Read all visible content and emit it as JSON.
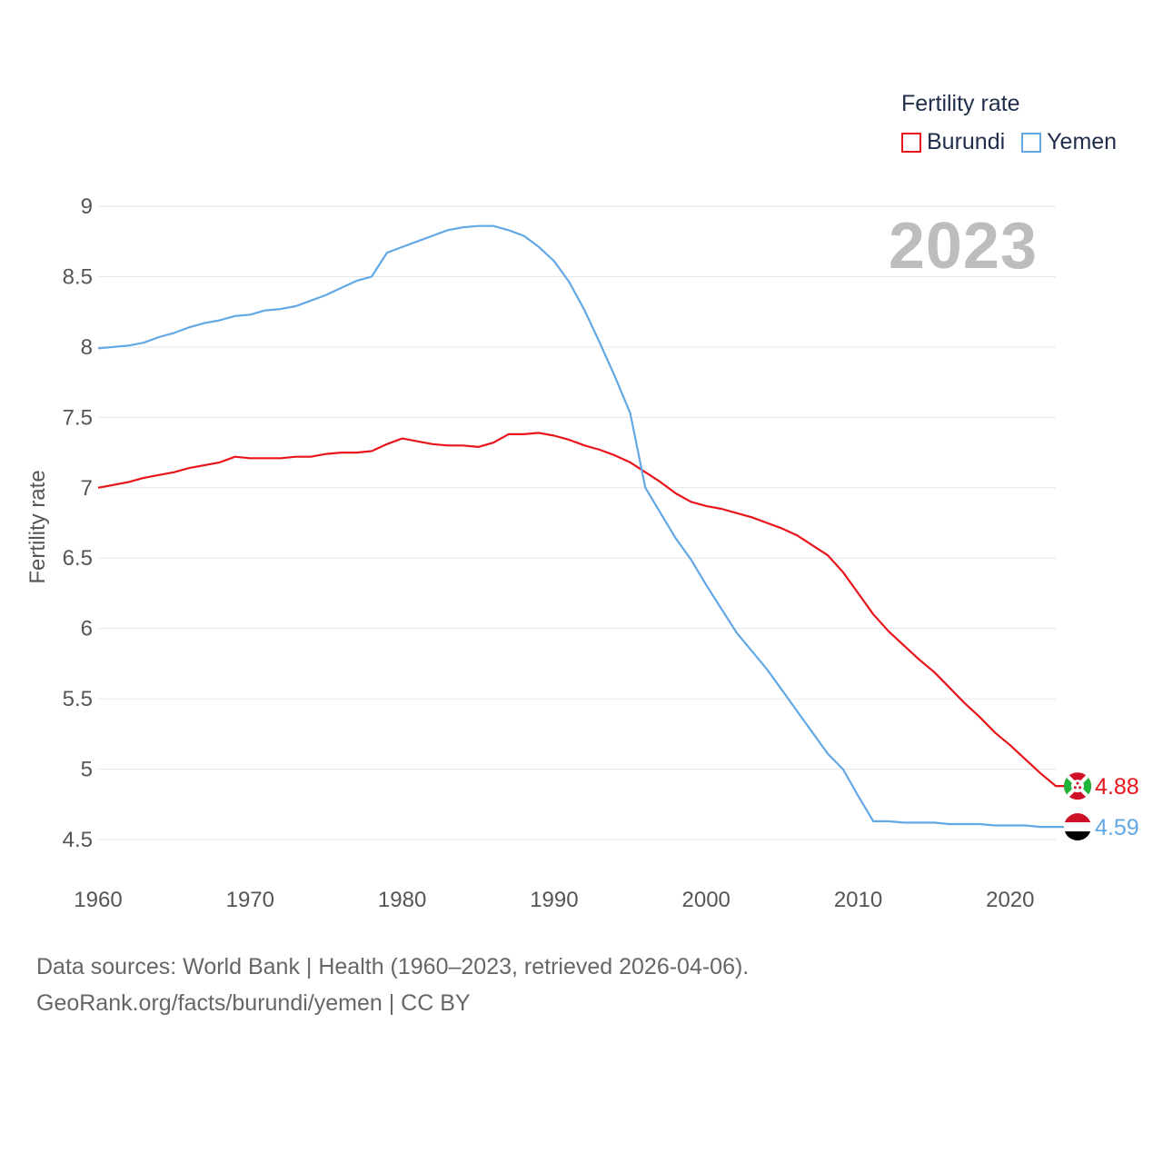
{
  "legend": {
    "title": "Fertility rate",
    "items": [
      {
        "name": "Burundi",
        "color": "#e8141b"
      },
      {
        "name": "Yemen",
        "color": "#62a8e5"
      }
    ]
  },
  "year_display": "2023",
  "source": {
    "line1": "Data sources: World Bank | Health (1960–2023, retrieved 2026-04-06).",
    "line2": "GeoRank.org/facts/burundi/yemen | CC BY"
  },
  "chart_data": {
    "type": "line",
    "title": "",
    "xlabel": "",
    "ylabel": "Fertility rate",
    "xlim": [
      1960,
      2023
    ],
    "ylim": [
      4.5,
      9
    ],
    "y_ticks": [
      "9",
      "8.5",
      "8",
      "7.5",
      "7",
      "6.5",
      "6",
      "5.5",
      "5",
      "4.5"
    ],
    "x_ticks": [
      "1960",
      "1970",
      "1980",
      "1990",
      "2000",
      "2010",
      "2020"
    ],
    "grid": true,
    "legend_position": "top-right",
    "series": [
      {
        "name": "Burundi",
        "color": "#e8141b",
        "end_label": "4.88",
        "flag": "burundi-flag-icon",
        "x": [
          1960,
          1962,
          1963,
          1965,
          1966,
          1968,
          1969,
          1970,
          1972,
          1973,
          1974,
          1975,
          1976,
          1977,
          1978,
          1979,
          1980,
          1982,
          1983,
          1984,
          1985,
          1986,
          1987,
          1988,
          1989,
          1990,
          1991,
          1992,
          1993,
          1994,
          1995,
          1996,
          1997,
          1998,
          1999,
          2000,
          2001,
          2002,
          2003,
          2004,
          2005,
          2006,
          2007,
          2008,
          2009,
          2010,
          2011,
          2012,
          2013,
          2014,
          2015,
          2016,
          2017,
          2018,
          2019,
          2020,
          2021,
          2022,
          2023
        ],
        "y": [
          7.0,
          7.04,
          7.07,
          7.11,
          7.14,
          7.18,
          7.22,
          7.21,
          7.21,
          7.22,
          7.22,
          7.24,
          7.25,
          7.25,
          7.26,
          7.31,
          7.35,
          7.31,
          7.3,
          7.3,
          7.29,
          7.32,
          7.38,
          7.38,
          7.39,
          7.37,
          7.34,
          7.3,
          7.27,
          7.23,
          7.18,
          7.11,
          7.04,
          6.96,
          6.9,
          6.87,
          6.85,
          6.82,
          6.79,
          6.75,
          6.71,
          6.66,
          6.59,
          6.52,
          6.4,
          6.25,
          6.1,
          5.98,
          5.88,
          5.78,
          5.69,
          5.58,
          5.47,
          5.37,
          5.26,
          5.17,
          5.07,
          4.97,
          4.88
        ]
      },
      {
        "name": "Yemen",
        "color": "#62a8e5",
        "end_label": "4.59",
        "flag": "yemen-flag-icon",
        "x": [
          1960,
          1962,
          1963,
          1964,
          1965,
          1966,
          1967,
          1968,
          1969,
          1970,
          1971,
          1972,
          1973,
          1974,
          1975,
          1976,
          1977,
          1978,
          1979,
          1980,
          1981,
          1982,
          1983,
          1984,
          1985,
          1986,
          1987,
          1988,
          1989,
          1990,
          1991,
          1992,
          1993,
          1994,
          1995,
          1996,
          1997,
          1998,
          1999,
          2000,
          2001,
          2002,
          2003,
          2004,
          2005,
          2006,
          2007,
          2008,
          2009,
          2010,
          2011,
          2012,
          2013,
          2014,
          2015,
          2016,
          2017,
          2018,
          2019,
          2020,
          2021,
          2022,
          2023
        ],
        "y": [
          7.99,
          8.01,
          8.03,
          8.07,
          8.1,
          8.14,
          8.17,
          8.19,
          8.22,
          8.23,
          8.26,
          8.27,
          8.29,
          8.33,
          8.37,
          8.42,
          8.47,
          8.5,
          8.67,
          8.71,
          8.75,
          8.79,
          8.83,
          8.85,
          8.86,
          8.86,
          8.83,
          8.79,
          8.71,
          8.61,
          8.46,
          8.26,
          8.03,
          7.79,
          7.53,
          7.0,
          6.82,
          6.64,
          6.49,
          6.31,
          6.14,
          5.97,
          5.84,
          5.71,
          5.56,
          5.41,
          5.26,
          5.11,
          5.0,
          4.81,
          4.63,
          4.63,
          4.62,
          4.62,
          4.62,
          4.61,
          4.61,
          4.61,
          4.6,
          4.6,
          4.6,
          4.59,
          4.59
        ]
      }
    ]
  }
}
